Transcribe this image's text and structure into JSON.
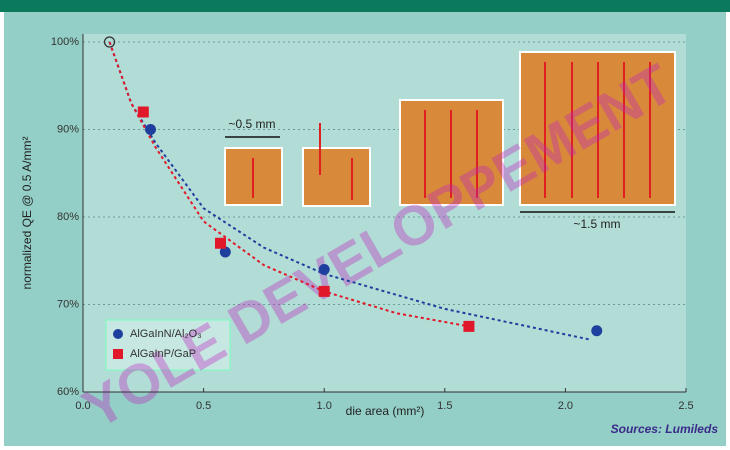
{
  "chart_data": {
    "type": "scatter",
    "x_label": "die area (mm²)",
    "y_label": "normalized QE @ 0.5 A/mm²",
    "xlim": [
      0,
      2.5
    ],
    "ylim": [
      60,
      100
    ],
    "xticks": [
      {
        "value": 0,
        "label": "0.0"
      },
      0.5,
      {
        "value": 1,
        "label": "1.0"
      },
      1.5,
      {
        "value": 2,
        "label": "2.0"
      },
      2.5
    ],
    "yticks": [
      {
        "value": 60,
        "label": "60%"
      },
      {
        "value": 70,
        "label": "70%"
      },
      {
        "value": 80,
        "label": "80%"
      },
      {
        "value": 90,
        "label": "90%"
      },
      {
        "value": 100,
        "label": "100%"
      }
    ],
    "grid": true,
    "legend": "lower-left",
    "series": [
      {
        "name": "AlGaInN/Al₂O₃",
        "color": "#1f3f9f",
        "marker": "circle",
        "x": [
          0.28,
          0.59,
          1.0,
          2.13
        ],
        "values": [
          90,
          76,
          74,
          67
        ]
      },
      {
        "name": "AlGaInP/GaP",
        "color": "#e0182a",
        "marker": "square",
        "x": [
          0.25,
          0.57,
          1.0,
          1.6
        ],
        "values": [
          92,
          77,
          71.5,
          67.5
        ]
      }
    ],
    "fits": [
      {
        "color": "#1f3f9f",
        "x": [
          0.11,
          0.2,
          0.3,
          0.5,
          0.75,
          1.0,
          1.5,
          2.1
        ],
        "values": [
          100,
          93,
          88.5,
          81,
          76.5,
          73.5,
          69.5,
          66
        ]
      },
      {
        "color": "#e0182a",
        "x": [
          0.11,
          0.2,
          0.3,
          0.5,
          0.75,
          1.0,
          1.3,
          1.6
        ],
        "values": [
          100,
          93,
          88,
          79.5,
          74.5,
          71.5,
          69,
          67.5
        ]
      }
    ],
    "reference_point": {
      "x": 0.11,
      "y": 100
    },
    "annotations": [
      "~0.5 mm",
      "~1.5 mm"
    ],
    "source": "Sources: Lumileds",
    "watermark": "YOLE DEVELOPPEMENT"
  }
}
